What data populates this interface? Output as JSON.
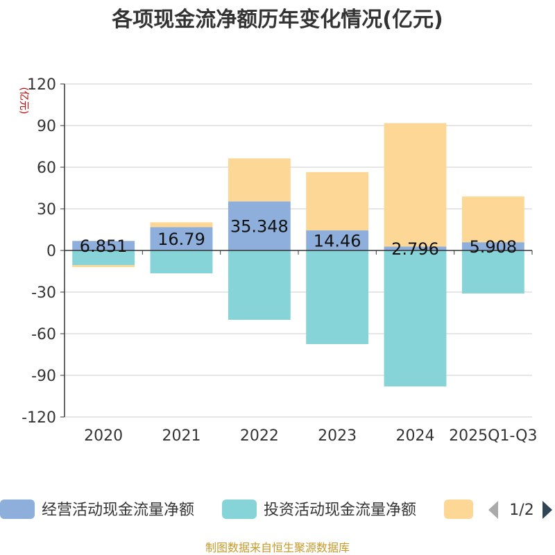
{
  "chart_data": {
    "type": "bar",
    "stacked": true,
    "title": "各项现金流净额历年变化情况(亿元)",
    "unit_label": "(亿元)",
    "categories": [
      "2020",
      "2021",
      "2022",
      "2023",
      "2024",
      "2025Q1-Q3"
    ],
    "ylim": [
      -120,
      120
    ],
    "yticks": [
      120,
      90,
      60,
      30,
      0,
      -30,
      -60,
      -90,
      -120
    ],
    "grid": true,
    "series": [
      {
        "name": "经营活动现金流量净额",
        "values": [
          6.851,
          16.79,
          35.348,
          14.46,
          2.796,
          5.908
        ],
        "labels": [
          "6.851",
          "16.79",
          "35.348",
          "14.46",
          "2.796",
          "5.908"
        ],
        "color": "#8eaedb"
      },
      {
        "name": "投资活动现金流量净额",
        "values": [
          -10.5,
          -16.5,
          -50,
          -67.5,
          -98,
          -31
        ],
        "color": "#86d4d8"
      },
      {
        "name": "",
        "values": [
          -1.5,
          3.5,
          31,
          42,
          89,
          33
        ],
        "color": "#fdd796"
      }
    ],
    "legend": {
      "position": "bottom",
      "page": "1/2"
    }
  },
  "source": "制图数据来自恒生聚源数据库"
}
